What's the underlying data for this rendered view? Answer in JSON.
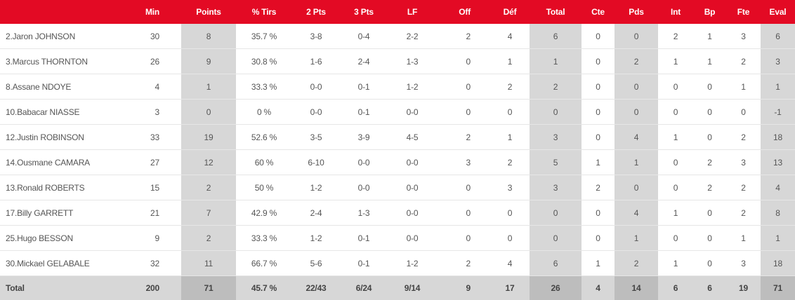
{
  "headers": {
    "player": "",
    "min": "Min",
    "points": "Points",
    "pct_tirs": "% Tirs",
    "two_pts": "2 Pts",
    "three_pts": "3 Pts",
    "lf": "LF",
    "off": "Off",
    "def": "Déf",
    "total": "Total",
    "cte": "Cte",
    "pds": "Pds",
    "int": "Int",
    "bp": "Bp",
    "fte": "Fte",
    "eval": "Eval"
  },
  "rows": [
    {
      "player": "2.Jaron JOHNSON",
      "min": "30",
      "points": "8",
      "pct_tirs": "35.7 %",
      "two_pts": "3-8",
      "three_pts": "0-4",
      "lf": "2-2",
      "off": "2",
      "def": "4",
      "total": "6",
      "cte": "0",
      "pds": "0",
      "int": "2",
      "bp": "1",
      "fte": "3",
      "eval": "6"
    },
    {
      "player": "3.Marcus THORNTON",
      "min": "26",
      "points": "9",
      "pct_tirs": "30.8 %",
      "two_pts": "1-6",
      "three_pts": "2-4",
      "lf": "1-3",
      "off": "0",
      "def": "1",
      "total": "1",
      "cte": "0",
      "pds": "2",
      "int": "1",
      "bp": "1",
      "fte": "2",
      "eval": "3"
    },
    {
      "player": "8.Assane NDOYE",
      "min": "4",
      "points": "1",
      "pct_tirs": "33.3 %",
      "two_pts": "0-0",
      "three_pts": "0-1",
      "lf": "1-2",
      "off": "0",
      "def": "2",
      "total": "2",
      "cte": "0",
      "pds": "0",
      "int": "0",
      "bp": "0",
      "fte": "1",
      "eval": "1"
    },
    {
      "player": "10.Babacar NIASSE",
      "min": "3",
      "points": "0",
      "pct_tirs": "0 %",
      "two_pts": "0-0",
      "three_pts": "0-1",
      "lf": "0-0",
      "off": "0",
      "def": "0",
      "total": "0",
      "cte": "0",
      "pds": "0",
      "int": "0",
      "bp": "0",
      "fte": "0",
      "eval": "-1"
    },
    {
      "player": "12.Justin ROBINSON",
      "min": "33",
      "points": "19",
      "pct_tirs": "52.6 %",
      "two_pts": "3-5",
      "three_pts": "3-9",
      "lf": "4-5",
      "off": "2",
      "def": "1",
      "total": "3",
      "cte": "0",
      "pds": "4",
      "int": "1",
      "bp": "0",
      "fte": "2",
      "eval": "18"
    },
    {
      "player": "14.Ousmane CAMARA",
      "min": "27",
      "points": "12",
      "pct_tirs": "60 %",
      "two_pts": "6-10",
      "three_pts": "0-0",
      "lf": "0-0",
      "off": "3",
      "def": "2",
      "total": "5",
      "cte": "1",
      "pds": "1",
      "int": "0",
      "bp": "2",
      "fte": "3",
      "eval": "13"
    },
    {
      "player": "13.Ronald ROBERTS",
      "min": "15",
      "points": "2",
      "pct_tirs": "50 %",
      "two_pts": "1-2",
      "three_pts": "0-0",
      "lf": "0-0",
      "off": "0",
      "def": "3",
      "total": "3",
      "cte": "2",
      "pds": "0",
      "int": "0",
      "bp": "2",
      "fte": "2",
      "eval": "4"
    },
    {
      "player": "17.Billy GARRETT",
      "min": "21",
      "points": "7",
      "pct_tirs": "42.9 %",
      "two_pts": "2-4",
      "three_pts": "1-3",
      "lf": "0-0",
      "off": "0",
      "def": "0",
      "total": "0",
      "cte": "0",
      "pds": "4",
      "int": "1",
      "bp": "0",
      "fte": "2",
      "eval": "8"
    },
    {
      "player": "25.Hugo BESSON",
      "min": "9",
      "points": "2",
      "pct_tirs": "33.3 %",
      "two_pts": "1-2",
      "three_pts": "0-1",
      "lf": "0-0",
      "off": "0",
      "def": "0",
      "total": "0",
      "cte": "0",
      "pds": "1",
      "int": "0",
      "bp": "0",
      "fte": "1",
      "eval": "1"
    },
    {
      "player": "30.Mickael GELABALE",
      "min": "32",
      "points": "11",
      "pct_tirs": "66.7 %",
      "two_pts": "5-6",
      "three_pts": "0-1",
      "lf": "1-2",
      "off": "2",
      "def": "4",
      "total": "6",
      "cte": "1",
      "pds": "2",
      "int": "1",
      "bp": "0",
      "fte": "3",
      "eval": "18"
    }
  ],
  "totals": {
    "player": "Total",
    "min": "200",
    "points": "71",
    "pct_tirs": "45.7 %",
    "two_pts": "22/43",
    "three_pts": "6/24",
    "lf": "9/14",
    "off": "9",
    "def": "17",
    "total": "26",
    "cte": "4",
    "pds": "14",
    "int": "6",
    "bp": "6",
    "fte": "19",
    "eval": "71"
  },
  "colors": {
    "header_bg": "#e30a24",
    "highlight_col": "#d7d7d7",
    "totals_bg": "#d7d7d7",
    "totals_highlight": "#bdbdbd"
  }
}
